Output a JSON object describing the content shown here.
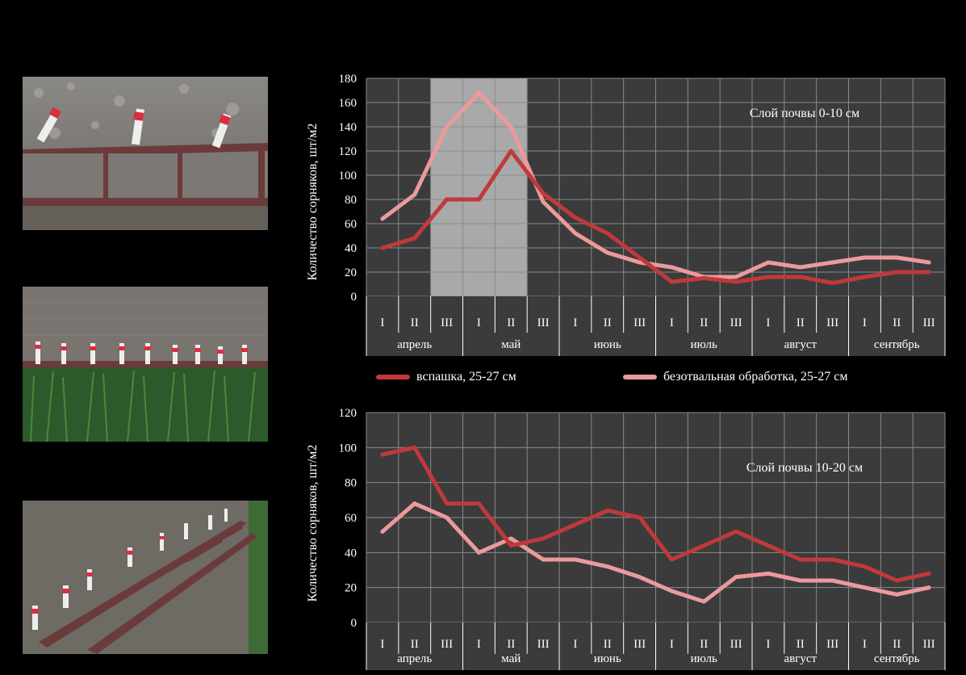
{
  "chart_data": [
    {
      "type": "line",
      "annotation": "Слой почвы 0-10 см",
      "ylabel": "Количество сорняков, шт/м2",
      "ylim": [
        0,
        180
      ],
      "yticks": [
        0,
        20,
        40,
        60,
        80,
        100,
        120,
        140,
        160,
        180
      ],
      "categories": [
        "I",
        "II",
        "III",
        "I",
        "II",
        "III",
        "I",
        "II",
        "III",
        "I",
        "II",
        "III",
        "I",
        "II",
        "III",
        "I",
        "II",
        "III"
      ],
      "months": [
        "апрель",
        "май",
        "июнь",
        "июль",
        "август",
        "сентябрь"
      ],
      "shaded_range": [
        "апрель III",
        "май III"
      ],
      "series": [
        {
          "name": "вспашка, 25-27 см",
          "color": "#c0393b",
          "values": [
            40,
            48,
            80,
            80,
            120,
            85,
            65,
            52,
            32,
            12,
            15,
            12,
            16,
            16,
            11,
            16,
            20,
            20
          ]
        },
        {
          "name": "безотвальная обработка, 25-27 см",
          "color": "#eb9a9c",
          "values": [
            64,
            84,
            140,
            168,
            140,
            78,
            52,
            36,
            28,
            24,
            16,
            16,
            28,
            24,
            28,
            32,
            32,
            28
          ]
        }
      ]
    },
    {
      "type": "line",
      "annotation": "Слой почвы 10-20 см",
      "ylabel": "Количество сорняков, шт/м2",
      "ylim": [
        0,
        120
      ],
      "yticks": [
        0,
        20,
        40,
        60,
        80,
        100,
        120
      ],
      "categories": [
        "I",
        "II",
        "III",
        "I",
        "II",
        "III",
        "I",
        "II",
        "III",
        "I",
        "II",
        "III",
        "I",
        "II",
        "III",
        "I",
        "II",
        "III"
      ],
      "months": [
        "апрель",
        "май",
        "июнь",
        "июль",
        "август",
        "сентябрь"
      ],
      "series": [
        {
          "name": "вспашка, 25-27 см",
          "color": "#c0393b",
          "values": [
            96,
            100,
            68,
            68,
            44,
            48,
            56,
            64,
            60,
            36,
            44,
            52,
            44,
            36,
            36,
            32,
            24,
            28
          ]
        },
        {
          "name": "безотвальная обработка, 25-27 см",
          "color": "#eb9a9c",
          "values": [
            52,
            68,
            60,
            40,
            48,
            36,
            36,
            32,
            26,
            18,
            12,
            26,
            28,
            24,
            24,
            20,
            16,
            20
          ]
        }
      ]
    }
  ],
  "legend": {
    "item1": "вспашка, 25-27 см",
    "item2": "безотвальная обработка, 25-27 см"
  }
}
